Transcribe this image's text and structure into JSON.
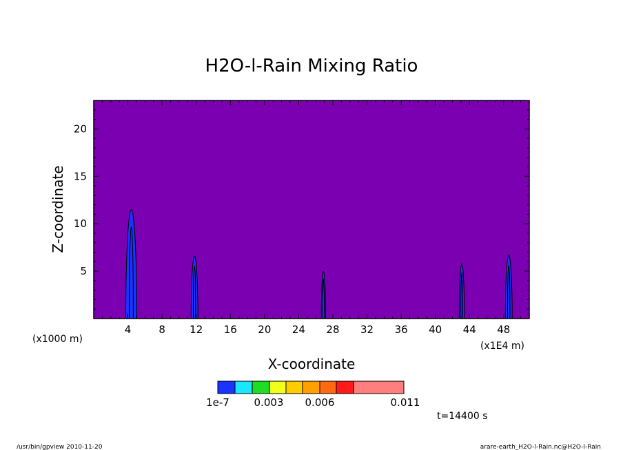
{
  "chart_data": {
    "type": "contour",
    "title": "H2O-l-Rain Mixing Ratio",
    "xlabel": "X-coordinate",
    "ylabel": "Z-coordinate",
    "x_unit_left": "(x1000 m)",
    "x_unit_right": "(x1E4 m)",
    "xlim": [
      0,
      51
    ],
    "ylim": [
      0,
      23
    ],
    "x_ticks": [
      4,
      8,
      12,
      16,
      20,
      24,
      28,
      32,
      36,
      40,
      44,
      48
    ],
    "y_ticks": [
      5,
      10,
      15,
      20
    ],
    "background_color": "#7b00b2",
    "cells": [
      {
        "x": 4.4,
        "width": 1.3,
        "z_top": 11.5
      },
      {
        "x": 11.8,
        "width": 0.8,
        "z_top": 6.6
      },
      {
        "x": 26.9,
        "width": 0.5,
        "z_top": 5.0
      },
      {
        "x": 43.1,
        "width": 0.6,
        "z_top": 5.8
      },
      {
        "x": 48.6,
        "width": 0.8,
        "z_top": 6.7
      }
    ],
    "colorbar": {
      "colors": [
        "#1a33ff",
        "#19e6ff",
        "#1fdd22",
        "#f2ff19",
        "#ffcc00",
        "#ff9f00",
        "#ff6a10",
        "#ff1a1a",
        "#ff7f7f"
      ],
      "labels": [
        "1e-7",
        "0.003",
        "0.006",
        "0.011"
      ]
    },
    "time_label": "t=14400 s"
  },
  "footer": {
    "left": "/usr/bin/gpview   2010-11-20",
    "right": "arare-earth_H2O-l-Rain.nc@H2O-l-Rain"
  }
}
